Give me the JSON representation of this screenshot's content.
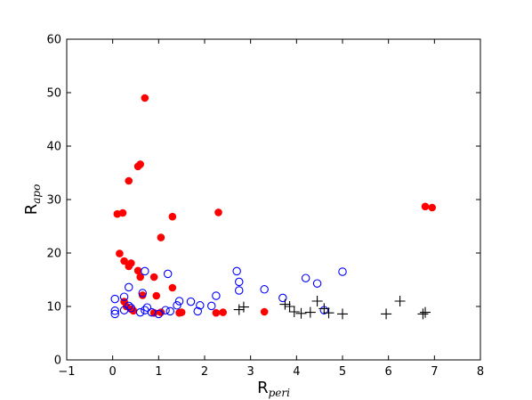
{
  "chart_data": {
    "type": "scatter",
    "xlabel": "R",
    "xlabel_sub": "peri",
    "ylabel": "R",
    "ylabel_sub": "apo",
    "xlim": [
      -1,
      8
    ],
    "ylim": [
      0,
      60
    ],
    "xticks": [
      -1,
      0,
      1,
      2,
      3,
      4,
      5,
      6,
      7,
      8
    ],
    "yticks": [
      0,
      10,
      20,
      30,
      40,
      50,
      60
    ],
    "xtick_labels": [
      "−1",
      "0",
      "1",
      "2",
      "3",
      "4",
      "5",
      "6",
      "7",
      "8"
    ],
    "ytick_labels": [
      "0",
      "10",
      "20",
      "30",
      "40",
      "50",
      "60"
    ],
    "grid": false,
    "series": [
      {
        "marker": "filled-circle",
        "color": "#ff0000",
        "points": [
          [
            0.7,
            49.0
          ],
          [
            0.6,
            36.6
          ],
          [
            0.55,
            36.2
          ],
          [
            0.35,
            33.5
          ],
          [
            0.1,
            27.3
          ],
          [
            0.22,
            27.5
          ],
          [
            2.3,
            27.6
          ],
          [
            1.3,
            26.8
          ],
          [
            1.05,
            22.9
          ],
          [
            0.15,
            19.9
          ],
          [
            0.25,
            18.5
          ],
          [
            0.4,
            18.1
          ],
          [
            0.35,
            17.5
          ],
          [
            0.55,
            16.7
          ],
          [
            0.6,
            15.5
          ],
          [
            0.9,
            15.5
          ],
          [
            1.3,
            13.5
          ],
          [
            0.65,
            12.1
          ],
          [
            0.95,
            12.0
          ],
          [
            0.25,
            10.9
          ],
          [
            0.3,
            10.0
          ],
          [
            0.4,
            9.5
          ],
          [
            0.45,
            9.2
          ],
          [
            0.9,
            8.8
          ],
          [
            1.05,
            8.9
          ],
          [
            1.45,
            8.8
          ],
          [
            1.5,
            8.9
          ],
          [
            2.25,
            8.8
          ],
          [
            2.4,
            8.9
          ],
          [
            3.3,
            9.0
          ],
          [
            6.8,
            28.7
          ],
          [
            6.95,
            28.5
          ]
        ]
      },
      {
        "marker": "open-circle",
        "color": "#0000ff",
        "points": [
          [
            0.05,
            11.4
          ],
          [
            0.05,
            9.2
          ],
          [
            0.05,
            8.6
          ],
          [
            0.25,
            11.8
          ],
          [
            0.25,
            9.3
          ],
          [
            0.35,
            13.6
          ],
          [
            0.35,
            10.1
          ],
          [
            0.4,
            9.7
          ],
          [
            0.6,
            8.9
          ],
          [
            0.65,
            12.5
          ],
          [
            0.7,
            16.6
          ],
          [
            0.7,
            9.3
          ],
          [
            0.75,
            9.8
          ],
          [
            0.85,
            8.9
          ],
          [
            1.0,
            8.6
          ],
          [
            1.15,
            9.3
          ],
          [
            1.2,
            16.1
          ],
          [
            1.25,
            9.1
          ],
          [
            1.45,
            11.0
          ],
          [
            1.4,
            10.2
          ],
          [
            1.7,
            10.9
          ],
          [
            1.85,
            9.1
          ],
          [
            1.9,
            10.2
          ],
          [
            2.15,
            10.1
          ],
          [
            2.25,
            12.0
          ],
          [
            2.7,
            16.6
          ],
          [
            2.75,
            14.6
          ],
          [
            2.75,
            13.0
          ],
          [
            3.3,
            13.2
          ],
          [
            3.7,
            11.6
          ],
          [
            4.2,
            15.3
          ],
          [
            4.45,
            14.3
          ],
          [
            5.0,
            16.5
          ],
          [
            4.6,
            9.3
          ]
        ]
      },
      {
        "marker": "plus",
        "color": "#000000",
        "points": [
          [
            2.75,
            9.4
          ],
          [
            2.85,
            9.9
          ],
          [
            3.75,
            10.4
          ],
          [
            3.85,
            10.0
          ],
          [
            3.95,
            9.0
          ],
          [
            4.1,
            8.7
          ],
          [
            4.3,
            8.9
          ],
          [
            4.45,
            11.0
          ],
          [
            4.6,
            9.6
          ],
          [
            4.7,
            8.8
          ],
          [
            5.0,
            8.6
          ],
          [
            5.95,
            8.6
          ],
          [
            6.25,
            11.0
          ],
          [
            6.75,
            8.6
          ],
          [
            6.8,
            8.9
          ]
        ]
      }
    ]
  }
}
